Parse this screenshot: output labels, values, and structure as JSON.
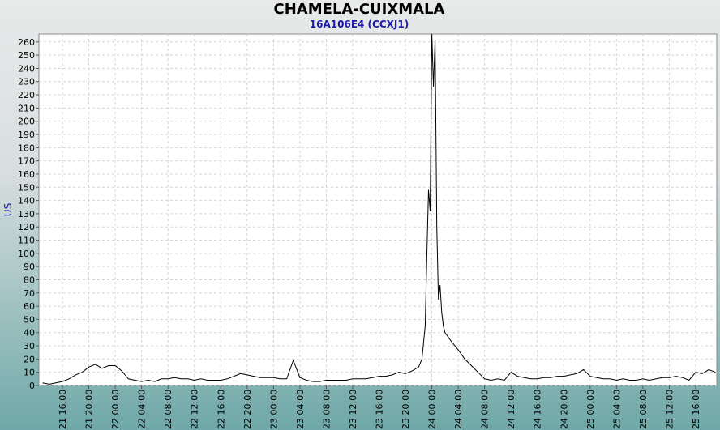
{
  "chart_data": {
    "type": "line",
    "title": "CHAMELA-CUIXMALA",
    "subtitle": "16A106E4 (CCXJ1)",
    "y_label": "US",
    "xlim": [
      "21 12:26",
      "25 19:12"
    ],
    "ylim": [
      0,
      266
    ],
    "xticks": [
      "21 16:00",
      "21 20:00",
      "22 00:00",
      "22 04:00",
      "22 08:00",
      "22 12:00",
      "22 16:00",
      "22 20:00",
      "23 00:00",
      "23 04:00",
      "23 08:00",
      "23 12:00",
      "23 16:00",
      "23 20:00",
      "24 00:00",
      "24 04:00",
      "24 08:00",
      "24 12:00",
      "24 16:00",
      "24 20:00",
      "25 00:00",
      "25 04:00",
      "25 08:00",
      "25 12:00",
      "25 16:00"
    ],
    "yticks": [
      0,
      10,
      20,
      30,
      40,
      50,
      60,
      70,
      80,
      90,
      100,
      110,
      120,
      130,
      140,
      150,
      160,
      170,
      180,
      190,
      200,
      210,
      220,
      230,
      240,
      250,
      260
    ],
    "grid": true,
    "color": "#000000",
    "x": [
      "21 13:00",
      "21 14:00",
      "21 15:00",
      "21 16:00",
      "21 17:00",
      "21 18:00",
      "21 19:00",
      "21 20:00",
      "21 21:00",
      "21 22:00",
      "21 23:00",
      "22 00:00",
      "22 01:00",
      "22 02:00",
      "22 03:00",
      "22 04:00",
      "22 05:00",
      "22 06:00",
      "22 07:00",
      "22 08:00",
      "22 09:00",
      "22 10:00",
      "22 11:00",
      "22 12:00",
      "22 13:00",
      "22 14:00",
      "22 15:00",
      "22 16:00",
      "22 17:00",
      "22 18:00",
      "22 19:00",
      "22 20:00",
      "22 21:00",
      "22 22:00",
      "22 23:00",
      "23 00:00",
      "23 01:00",
      "23 02:00",
      "23 03:00",
      "23 04:00",
      "23 05:00",
      "23 06:00",
      "23 07:00",
      "23 08:00",
      "23 09:00",
      "23 10:00",
      "23 11:00",
      "23 12:00",
      "23 13:00",
      "23 14:00",
      "23 15:00",
      "23 16:00",
      "23 17:00",
      "23 18:00",
      "23 19:00",
      "23 20:00",
      "23 21:00",
      "23 22:00",
      "23 22:30",
      "23 23:00",
      "23 23:15",
      "23 23:30",
      "23 23:45",
      "24 00:00",
      "24 00:15",
      "24 00:30",
      "24 00:45",
      "24 01:00",
      "24 01:15",
      "24 01:30",
      "24 01:45",
      "24 02:00",
      "24 03:00",
      "24 04:00",
      "24 05:00",
      "24 06:00",
      "24 07:00",
      "24 08:00",
      "24 09:00",
      "24 10:00",
      "24 11:00",
      "24 12:00",
      "24 13:00",
      "24 14:00",
      "24 15:00",
      "24 16:00",
      "24 17:00",
      "24 18:00",
      "24 19:00",
      "24 20:00",
      "24 21:00",
      "24 22:00",
      "24 23:00",
      "25 00:00",
      "25 01:00",
      "25 02:00",
      "25 03:00",
      "25 04:00",
      "25 05:00",
      "25 06:00",
      "25 07:00",
      "25 08:00",
      "25 09:00",
      "25 10:00",
      "25 11:00",
      "25 12:00",
      "25 13:00",
      "25 14:00",
      "25 15:00",
      "25 16:00",
      "25 17:00",
      "25 18:00",
      "25 19:00"
    ],
    "values": [
      2,
      1,
      2,
      3,
      5,
      8,
      10,
      14,
      16,
      13,
      15,
      15,
      11,
      5,
      4,
      3,
      4,
      3,
      5,
      5,
      6,
      5,
      5,
      4,
      5,
      4,
      4,
      4,
      5,
      7,
      9,
      8,
      7,
      6,
      6,
      6,
      5,
      5,
      19,
      6,
      4,
      3,
      3,
      4,
      4,
      4,
      4,
      5,
      5,
      5,
      6,
      7,
      7,
      8,
      10,
      9,
      11,
      14,
      20,
      45,
      100,
      148,
      132,
      266,
      226,
      262,
      120,
      65,
      76,
      55,
      45,
      40,
      33,
      27,
      20,
      15,
      10,
      5,
      4,
      5,
      4,
      10,
      7,
      6,
      5,
      5,
      6,
      6,
      7,
      7,
      8,
      9,
      12,
      7,
      6,
      5,
      5,
      4,
      5,
      4,
      4,
      5,
      4,
      5,
      6,
      6,
      7,
      6,
      4,
      10,
      9,
      12,
      10
    ]
  }
}
